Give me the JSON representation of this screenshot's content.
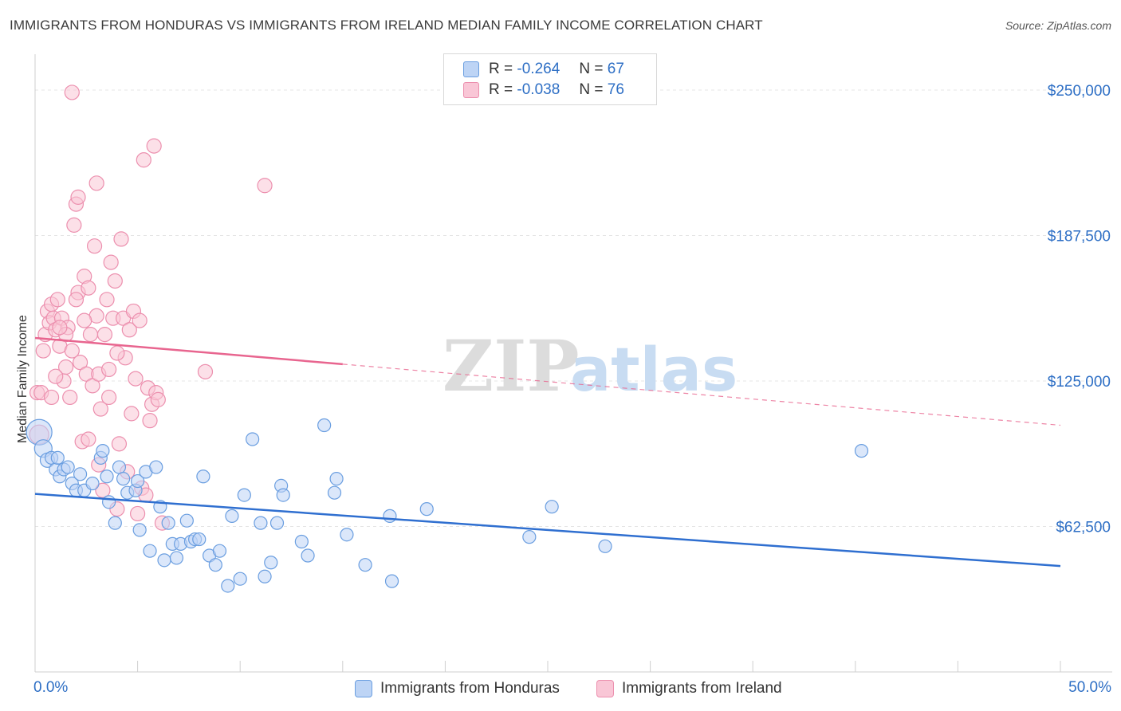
{
  "title": "IMMIGRANTS FROM HONDURAS VS IMMIGRANTS FROM IRELAND MEDIAN FAMILY INCOME CORRELATION CHART",
  "source": "Source: ZipAtlas.com",
  "watermark": {
    "zip": "ZIP",
    "atlas": "atlas"
  },
  "legend": {
    "r_label": "R =",
    "n_label": "N =",
    "honduras": {
      "r": "-0.264",
      "n": "67"
    },
    "ireland": {
      "r": "-0.038",
      "n": "76"
    }
  },
  "bottom_legend": {
    "honduras": "Immigrants from Honduras",
    "ireland": "Immigrants from Ireland"
  },
  "colors": {
    "honduras_fill": "#bdd4f5",
    "honduras_stroke": "#6a9ee0",
    "honduras_line": "#2f6fd0",
    "ireland_fill": "#f9c6d6",
    "ireland_stroke": "#ec8fae",
    "ireland_line": "#e8658f",
    "axis_label": "#2e6fc5",
    "grid": "#e4e4e4"
  },
  "chart_data": {
    "type": "scatter",
    "title": "IMMIGRANTS FROM HONDURAS VS IMMIGRANTS FROM IRELAND MEDIAN FAMILY INCOME CORRELATION CHART",
    "xlabel": "",
    "ylabel": "Median Family Income",
    "xlim": [
      0,
      50
    ],
    "ylim": [
      0,
      262000
    ],
    "x_tick_labels": [
      "0.0%",
      "50.0%"
    ],
    "y_ticks": [
      62500,
      125000,
      187500,
      250000
    ],
    "y_tick_labels": [
      "$62,500",
      "$125,000",
      "$187,500",
      "$250,000"
    ],
    "series": [
      {
        "name": "Immigrants from Honduras",
        "r": -0.264,
        "n": 67,
        "trend": {
          "x": [
            0,
            50
          ],
          "y": [
            76500,
            45500
          ],
          "dashed_from": null
        },
        "points": [
          {
            "x": 0.2,
            "y": 103000,
            "s": 16
          },
          {
            "x": 0.4,
            "y": 96000,
            "s": 11
          },
          {
            "x": 0.6,
            "y": 91000,
            "s": 9
          },
          {
            "x": 0.8,
            "y": 92000,
            "s": 8
          },
          {
            "x": 1.0,
            "y": 87000,
            "s": 8
          },
          {
            "x": 1.2,
            "y": 84000,
            "s": 8
          },
          {
            "x": 1.4,
            "y": 87000,
            "s": 8
          },
          {
            "x": 1.6,
            "y": 88000,
            "s": 8
          },
          {
            "x": 1.8,
            "y": 81000,
            "s": 8
          },
          {
            "x": 2.0,
            "y": 78000,
            "s": 8
          },
          {
            "x": 2.2,
            "y": 85000,
            "s": 8
          },
          {
            "x": 2.4,
            "y": 78000,
            "s": 8
          },
          {
            "x": 2.8,
            "y": 81000,
            "s": 8
          },
          {
            "x": 3.2,
            "y": 92000,
            "s": 8
          },
          {
            "x": 3.3,
            "y": 95000,
            "s": 8
          },
          {
            "x": 3.5,
            "y": 84000,
            "s": 8
          },
          {
            "x": 3.6,
            "y": 73000,
            "s": 8
          },
          {
            "x": 3.9,
            "y": 64000,
            "s": 8
          },
          {
            "x": 4.1,
            "y": 88000,
            "s": 8
          },
          {
            "x": 4.3,
            "y": 83000,
            "s": 8
          },
          {
            "x": 4.5,
            "y": 77000,
            "s": 8
          },
          {
            "x": 4.9,
            "y": 78000,
            "s": 8
          },
          {
            "x": 5.0,
            "y": 82000,
            "s": 8
          },
          {
            "x": 5.1,
            "y": 61000,
            "s": 8
          },
          {
            "x": 5.4,
            "y": 86000,
            "s": 8
          },
          {
            "x": 5.6,
            "y": 52000,
            "s": 8
          },
          {
            "x": 5.9,
            "y": 88000,
            "s": 8
          },
          {
            "x": 6.1,
            "y": 71000,
            "s": 8
          },
          {
            "x": 6.3,
            "y": 48000,
            "s": 8
          },
          {
            "x": 6.5,
            "y": 64000,
            "s": 8
          },
          {
            "x": 6.7,
            "y": 55000,
            "s": 8
          },
          {
            "x": 6.9,
            "y": 49000,
            "s": 8
          },
          {
            "x": 7.1,
            "y": 55000,
            "s": 8
          },
          {
            "x": 7.4,
            "y": 65000,
            "s": 8
          },
          {
            "x": 7.6,
            "y": 56000,
            "s": 8
          },
          {
            "x": 7.8,
            "y": 57000,
            "s": 8
          },
          {
            "x": 8.0,
            "y": 57000,
            "s": 8
          },
          {
            "x": 8.2,
            "y": 84000,
            "s": 8
          },
          {
            "x": 8.5,
            "y": 50000,
            "s": 8
          },
          {
            "x": 8.8,
            "y": 46000,
            "s": 8
          },
          {
            "x": 9.0,
            "y": 52000,
            "s": 8
          },
          {
            "x": 9.4,
            "y": 37000,
            "s": 8
          },
          {
            "x": 9.6,
            "y": 67000,
            "s": 8
          },
          {
            "x": 10.0,
            "y": 40000,
            "s": 8
          },
          {
            "x": 10.2,
            "y": 76000,
            "s": 8
          },
          {
            "x": 10.6,
            "y": 100000,
            "s": 8
          },
          {
            "x": 11.0,
            "y": 64000,
            "s": 8
          },
          {
            "x": 11.2,
            "y": 41000,
            "s": 8
          },
          {
            "x": 11.5,
            "y": 47000,
            "s": 8
          },
          {
            "x": 11.8,
            "y": 64000,
            "s": 8
          },
          {
            "x": 12.0,
            "y": 80000,
            "s": 8
          },
          {
            "x": 12.1,
            "y": 76000,
            "s": 8
          },
          {
            "x": 13.0,
            "y": 56000,
            "s": 8
          },
          {
            "x": 13.3,
            "y": 50000,
            "s": 8
          },
          {
            "x": 14.1,
            "y": 106000,
            "s": 8
          },
          {
            "x": 14.6,
            "y": 77000,
            "s": 8
          },
          {
            "x": 14.7,
            "y": 83000,
            "s": 8
          },
          {
            "x": 15.2,
            "y": 59000,
            "s": 8
          },
          {
            "x": 16.1,
            "y": 46000,
            "s": 8
          },
          {
            "x": 17.3,
            "y": 67000,
            "s": 8
          },
          {
            "x": 17.4,
            "y": 39000,
            "s": 8
          },
          {
            "x": 19.1,
            "y": 70000,
            "s": 8
          },
          {
            "x": 24.1,
            "y": 58000,
            "s": 8
          },
          {
            "x": 25.2,
            "y": 71000,
            "s": 8
          },
          {
            "x": 27.8,
            "y": 54000,
            "s": 8
          },
          {
            "x": 40.3,
            "y": 95000,
            "s": 8
          },
          {
            "x": 1.1,
            "y": 92000,
            "s": 8
          }
        ]
      },
      {
        "name": "Immigrants from Ireland",
        "r": -0.038,
        "n": 76,
        "trend": {
          "x": [
            0,
            50
          ],
          "y": [
            143500,
            106000
          ],
          "dashed_from": 15
        },
        "points": [
          {
            "x": 0.1,
            "y": 120000,
            "s": 9
          },
          {
            "x": 0.2,
            "y": 102000,
            "s": 12
          },
          {
            "x": 0.3,
            "y": 120000,
            "s": 9
          },
          {
            "x": 0.4,
            "y": 138000,
            "s": 9
          },
          {
            "x": 0.5,
            "y": 145000,
            "s": 9
          },
          {
            "x": 0.6,
            "y": 155000,
            "s": 9
          },
          {
            "x": 0.7,
            "y": 150000,
            "s": 9
          },
          {
            "x": 0.8,
            "y": 158000,
            "s": 9
          },
          {
            "x": 0.9,
            "y": 152000,
            "s": 9
          },
          {
            "x": 1.0,
            "y": 147000,
            "s": 9
          },
          {
            "x": 1.1,
            "y": 160000,
            "s": 9
          },
          {
            "x": 1.2,
            "y": 140000,
            "s": 9
          },
          {
            "x": 1.3,
            "y": 152000,
            "s": 9
          },
          {
            "x": 1.4,
            "y": 125000,
            "s": 9
          },
          {
            "x": 1.5,
            "y": 131000,
            "s": 9
          },
          {
            "x": 1.6,
            "y": 148000,
            "s": 9
          },
          {
            "x": 1.7,
            "y": 118000,
            "s": 9
          },
          {
            "x": 1.8,
            "y": 138000,
            "s": 9
          },
          {
            "x": 1.9,
            "y": 192000,
            "s": 9
          },
          {
            "x": 2.0,
            "y": 201000,
            "s": 9
          },
          {
            "x": 2.1,
            "y": 163000,
            "s": 9
          },
          {
            "x": 2.2,
            "y": 133000,
            "s": 9
          },
          {
            "x": 2.3,
            "y": 99000,
            "s": 9
          },
          {
            "x": 2.4,
            "y": 170000,
            "s": 9
          },
          {
            "x": 2.5,
            "y": 128000,
            "s": 9
          },
          {
            "x": 2.6,
            "y": 165000,
            "s": 9
          },
          {
            "x": 2.7,
            "y": 145000,
            "s": 9
          },
          {
            "x": 2.8,
            "y": 123000,
            "s": 9
          },
          {
            "x": 2.9,
            "y": 183000,
            "s": 9
          },
          {
            "x": 3.0,
            "y": 153000,
            "s": 9
          },
          {
            "x": 3.1,
            "y": 128000,
            "s": 9
          },
          {
            "x": 3.2,
            "y": 113000,
            "s": 9
          },
          {
            "x": 3.3,
            "y": 78000,
            "s": 9
          },
          {
            "x": 3.4,
            "y": 145000,
            "s": 9
          },
          {
            "x": 3.5,
            "y": 160000,
            "s": 9
          },
          {
            "x": 3.6,
            "y": 118000,
            "s": 9
          },
          {
            "x": 3.7,
            "y": 176000,
            "s": 9
          },
          {
            "x": 3.8,
            "y": 152000,
            "s": 9
          },
          {
            "x": 3.9,
            "y": 168000,
            "s": 9
          },
          {
            "x": 4.0,
            "y": 70000,
            "s": 9
          },
          {
            "x": 4.1,
            "y": 98000,
            "s": 9
          },
          {
            "x": 4.2,
            "y": 186000,
            "s": 9
          },
          {
            "x": 4.3,
            "y": 152000,
            "s": 9
          },
          {
            "x": 4.4,
            "y": 135000,
            "s": 9
          },
          {
            "x": 4.5,
            "y": 86000,
            "s": 9
          },
          {
            "x": 4.6,
            "y": 147000,
            "s": 9
          },
          {
            "x": 4.7,
            "y": 111000,
            "s": 9
          },
          {
            "x": 4.8,
            "y": 155000,
            "s": 9
          },
          {
            "x": 4.9,
            "y": 126000,
            "s": 9
          },
          {
            "x": 5.0,
            "y": 68000,
            "s": 9
          },
          {
            "x": 5.1,
            "y": 151000,
            "s": 9
          },
          {
            "x": 5.2,
            "y": 79000,
            "s": 9
          },
          {
            "x": 5.3,
            "y": 220000,
            "s": 9
          },
          {
            "x": 5.4,
            "y": 76000,
            "s": 9
          },
          {
            "x": 5.5,
            "y": 122000,
            "s": 9
          },
          {
            "x": 5.6,
            "y": 108000,
            "s": 9
          },
          {
            "x": 5.7,
            "y": 115000,
            "s": 9
          },
          {
            "x": 5.8,
            "y": 226000,
            "s": 9
          },
          {
            "x": 5.9,
            "y": 120000,
            "s": 9
          },
          {
            "x": 6.0,
            "y": 117000,
            "s": 9
          },
          {
            "x": 6.2,
            "y": 64000,
            "s": 9
          },
          {
            "x": 8.3,
            "y": 129000,
            "s": 9
          },
          {
            "x": 11.2,
            "y": 209000,
            "s": 9
          },
          {
            "x": 1.8,
            "y": 249000,
            "s": 9
          },
          {
            "x": 2.1,
            "y": 204000,
            "s": 9
          },
          {
            "x": 3.0,
            "y": 210000,
            "s": 9
          },
          {
            "x": 2.6,
            "y": 100000,
            "s": 9
          },
          {
            "x": 0.8,
            "y": 118000,
            "s": 9
          },
          {
            "x": 1.0,
            "y": 127000,
            "s": 9
          },
          {
            "x": 1.5,
            "y": 145000,
            "s": 9
          },
          {
            "x": 2.0,
            "y": 160000,
            "s": 9
          },
          {
            "x": 2.4,
            "y": 151000,
            "s": 9
          },
          {
            "x": 3.1,
            "y": 89000,
            "s": 9
          },
          {
            "x": 4.0,
            "y": 137000,
            "s": 9
          },
          {
            "x": 1.2,
            "y": 148000,
            "s": 9
          },
          {
            "x": 3.6,
            "y": 130000,
            "s": 9
          }
        ]
      }
    ]
  }
}
